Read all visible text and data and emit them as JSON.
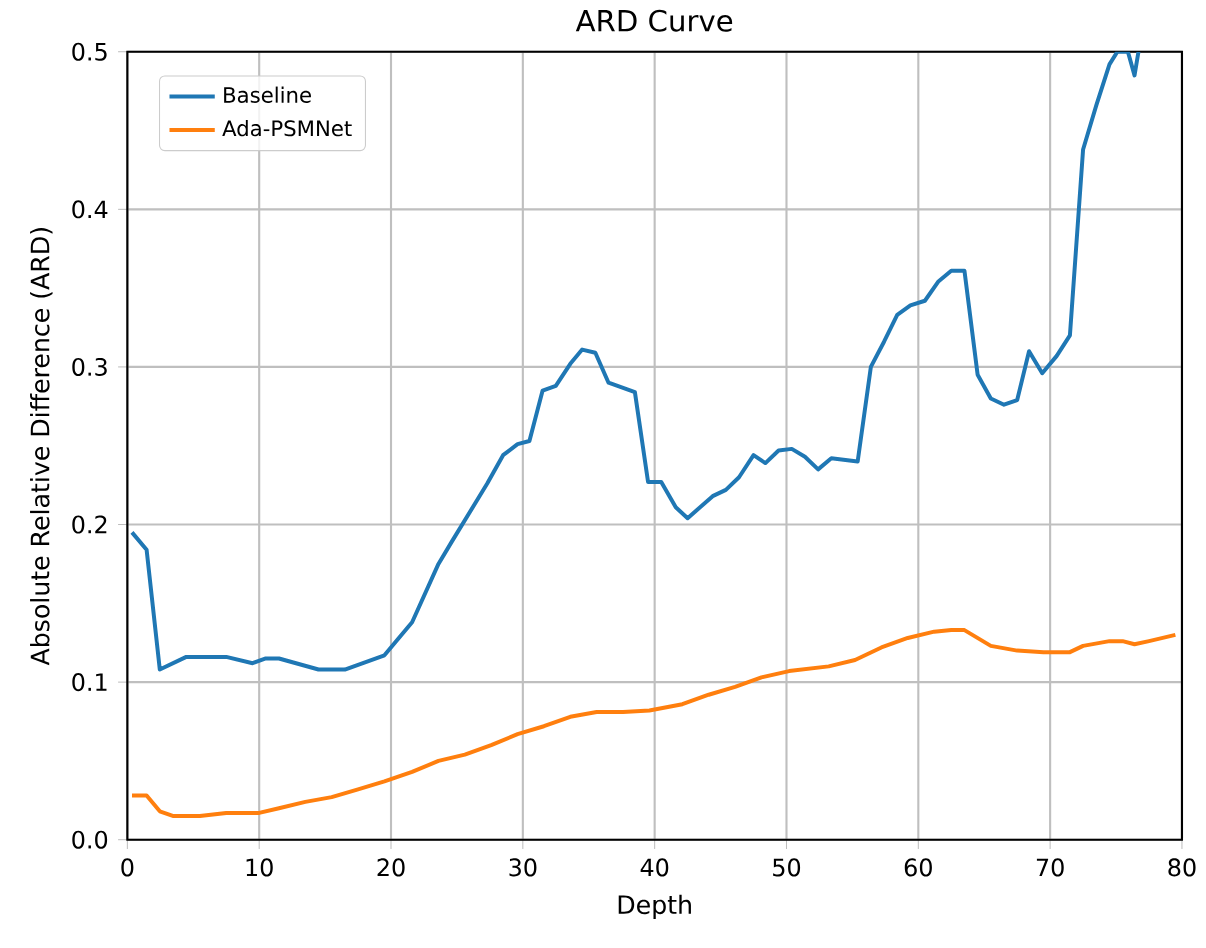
{
  "chart_data": {
    "type": "line",
    "title": "ARD Curve",
    "xlabel": "Depth",
    "ylabel": "Absolute Relative Difference (ARD)",
    "xlim": [
      0,
      80
    ],
    "ylim": [
      0,
      0.5
    ],
    "xticks": [
      0,
      10,
      20,
      30,
      40,
      50,
      60,
      70,
      80
    ],
    "yticks": [
      {
        "value": 0,
        "label": "0.0"
      },
      0.1,
      0.2,
      0.3,
      0.4,
      0.5
    ],
    "grid": true,
    "legend": "top left",
    "series": [
      {
        "name": "Baseline",
        "color": "#1f77b4",
        "x": [
          0.35,
          1.46,
          2.46,
          4.47,
          7.5,
          9.5,
          10.5,
          11.5,
          14.5,
          15.5,
          16.5,
          19.5,
          20.5,
          21.6,
          23.6,
          24.6,
          27.3,
          28.5,
          29.6,
          30.5,
          31.5,
          32.5,
          33.6,
          34.5,
          35.5,
          36.5,
          38.5,
          39.5,
          40.5,
          41.6,
          42.5,
          44.4,
          45.4,
          46.4,
          47.5,
          48.4,
          49.4,
          50.4,
          51.4,
          52.4,
          53.4,
          55.4,
          56.4,
          57.4,
          58.4,
          59.4,
          60.5,
          61.5,
          62.5,
          63.5,
          64.5,
          65.5,
          66.5,
          67.5,
          68.4,
          69.4,
          70.5,
          71.5,
          72.5,
          73.5,
          74.5,
          75.1,
          75.9,
          76.4,
          76.7
        ],
        "values": [
          0.195,
          0.184,
          0.108,
          0.116,
          0.116,
          0.112,
          0.115,
          0.115,
          0.108,
          0.108,
          0.108,
          0.117,
          0.127,
          0.138,
          0.175,
          0.189,
          0.226,
          0.244,
          0.251,
          0.253,
          0.285,
          0.288,
          0.302,
          0.311,
          0.309,
          0.29,
          0.284,
          0.227,
          0.227,
          0.211,
          0.204,
          0.218,
          0.222,
          0.23,
          0.244,
          0.239,
          0.247,
          0.248,
          0.243,
          0.235,
          0.242,
          0.24,
          0.3,
          0.316,
          0.333,
          0.339,
          0.342,
          0.354,
          0.361,
          0.361,
          0.295,
          0.28,
          0.276,
          0.279,
          0.31,
          0.296,
          0.307,
          0.32,
          0.438,
          0.466,
          0.492,
          0.5,
          0.5,
          0.485,
          0.5
        ]
      },
      {
        "name": "Ada-PSMNet",
        "color": "#ff7f0e",
        "x": [
          0.35,
          1.46,
          2.46,
          3.5,
          5.5,
          7.5,
          10.0,
          11.5,
          13.5,
          15.5,
          17.5,
          19.5,
          21.6,
          23.6,
          25.6,
          27.6,
          29.6,
          31.6,
          33.6,
          35.6,
          37.6,
          39.6,
          42.1,
          44.1,
          46.1,
          48.1,
          50.2,
          53.2,
          55.2,
          57.2,
          59.2,
          61.2,
          62.5,
          63.5,
          65.5,
          67.5,
          69.5,
          71.5,
          72.5,
          74.5,
          75.5,
          76.4,
          77.5,
          79.5
        ],
        "values": [
          0.028,
          0.028,
          0.018,
          0.015,
          0.015,
          0.017,
          0.017,
          0.02,
          0.024,
          0.027,
          0.032,
          0.037,
          0.043,
          0.05,
          0.054,
          0.06,
          0.067,
          0.072,
          0.078,
          0.081,
          0.081,
          0.082,
          0.086,
          0.092,
          0.097,
          0.103,
          0.107,
          0.11,
          0.114,
          0.122,
          0.128,
          0.132,
          0.133,
          0.133,
          0.123,
          0.12,
          0.119,
          0.119,
          0.123,
          0.126,
          0.126,
          0.124,
          0.126,
          0.13
        ]
      }
    ]
  }
}
